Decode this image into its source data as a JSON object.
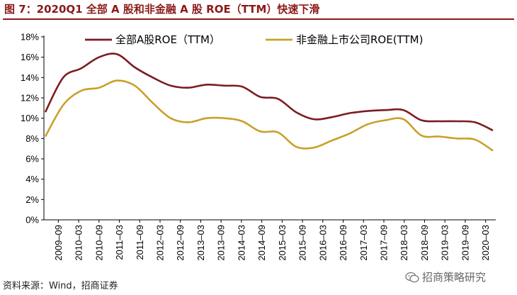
{
  "figure": {
    "title": "图 7：2020Q1 全部 A 股和非金融 A 股 ROE（TTM）快速下滑",
    "source": "资料来源：Wind，招商证券",
    "watermark": "招商策略研究"
  },
  "colors": {
    "title": "#8B1A1A",
    "series1": "#7B1C22",
    "series2": "#C9A02A",
    "axis": "#000000"
  },
  "chart_data": {
    "type": "line",
    "ylim": [
      0,
      18
    ],
    "yticks": [
      "0%",
      "2%",
      "4%",
      "6%",
      "8%",
      "10%",
      "12%",
      "14%",
      "16%",
      "18%"
    ],
    "xticks": [
      "2009–09",
      "2010–03",
      "2010–09",
      "2011–03",
      "2011–09",
      "2012–03",
      "2012–09",
      "2013–03",
      "2013–09",
      "2014–03",
      "2014–09",
      "2015–03",
      "2015–09",
      "2016–03",
      "2016–09",
      "2017–03",
      "2017–09",
      "2018–03",
      "2018–09",
      "2019–03",
      "2019–09",
      "2020–03"
    ],
    "legend_position": "top",
    "series": [
      {
        "name": "全部A股ROE（TTM）",
        "values": [
          10.6,
          14.0,
          14.9,
          16.0,
          16.3,
          15.0,
          14.0,
          13.2,
          13.0,
          13.3,
          13.2,
          13.1,
          12.1,
          11.9,
          10.6,
          9.9,
          10.1,
          10.5,
          10.7,
          10.8,
          10.8,
          9.8,
          9.7,
          9.7,
          9.6,
          8.8
        ]
      },
      {
        "name": "非金融上市公司ROE(TTM)",
        "values": [
          8.2,
          11.3,
          12.7,
          13.0,
          13.7,
          13.2,
          11.5,
          10.0,
          9.6,
          10.0,
          10.0,
          9.7,
          8.7,
          8.6,
          7.2,
          7.1,
          7.8,
          8.5,
          9.4,
          9.8,
          9.9,
          8.3,
          8.2,
          8.0,
          7.9,
          6.8
        ]
      }
    ]
  }
}
